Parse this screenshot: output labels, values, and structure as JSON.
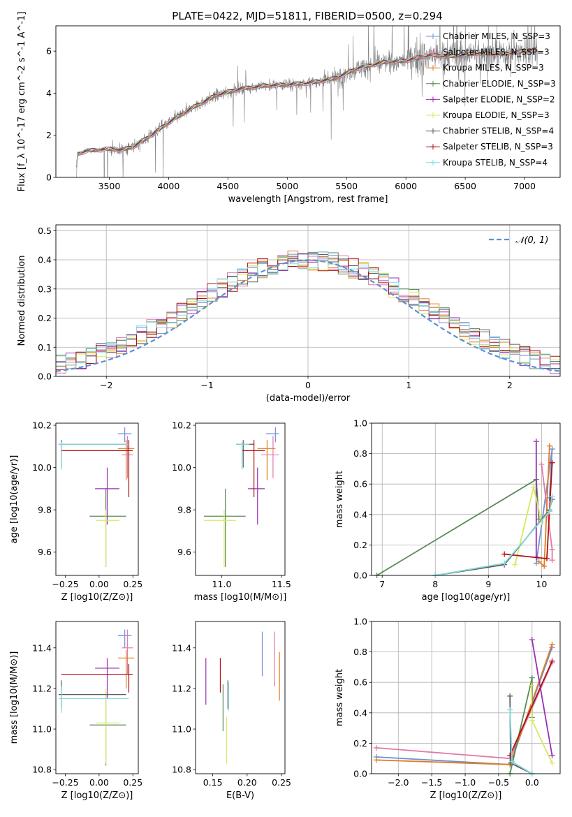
{
  "figure": {
    "title": "PLATE=0422, MJD=51811, FIBERID=0500, z=0.294"
  },
  "colors": {
    "chabrier_miles": "#6f8fd8",
    "salpeter_miles": "#e17aa8",
    "kroupa_miles": "#e07d1f",
    "chabrier_elodie": "#5a8a5a",
    "salpeter_elodie": "#9a2fb4",
    "kroupa_elodie": "#d7e860",
    "chabrier_stelib": "#5e5e5e",
    "salpeter_stelib": "#b01010",
    "kroupa_stelib": "#84dbe0",
    "data": "#808080",
    "normal": "#5b8fd8"
  },
  "chart_data": [
    {
      "id": "spectrum",
      "type": "line",
      "title": "PLATE=0422, MJD=51811, FIBERID=0500, z=0.294",
      "xlabel": "wavelength [Angstrom, rest frame]",
      "ylabel": "Flux [f_λ 10^-17 erg cm^-2 s^-1 A^-1]",
      "xlim": [
        3050,
        7300
      ],
      "ylim": [
        0,
        7.2
      ],
      "xticks": [
        3500,
        4000,
        4500,
        5000,
        5500,
        6000,
        6500,
        7000
      ],
      "yticks": [
        0,
        2,
        4,
        6
      ],
      "continuum_knots": [
        [
          3220,
          0.0
        ],
        [
          3230,
          1.1
        ],
        [
          3300,
          1.25
        ],
        [
          3500,
          1.35
        ],
        [
          3600,
          1.3
        ],
        [
          3700,
          1.45
        ],
        [
          3800,
          1.8
        ],
        [
          3900,
          2.2
        ],
        [
          4000,
          2.6
        ],
        [
          4200,
          3.3
        ],
        [
          4400,
          3.9
        ],
        [
          4600,
          4.2
        ],
        [
          4800,
          4.35
        ],
        [
          5000,
          4.4
        ],
        [
          5200,
          4.5
        ],
        [
          5400,
          4.7
        ],
        [
          5600,
          5.2
        ],
        [
          5800,
          5.45
        ],
        [
          6000,
          5.55
        ],
        [
          6200,
          5.8
        ],
        [
          6400,
          5.75
        ],
        [
          6600,
          5.9
        ],
        [
          6800,
          5.85
        ],
        [
          7000,
          6.0
        ],
        [
          7100,
          6.1
        ]
      ],
      "legend_position": "top-right",
      "series": [
        {
          "name": "Chabrier MILES, N_SSP=3",
          "color_key": "chabrier_miles",
          "marker": "+"
        },
        {
          "name": "Salpeter MILES, N_SSP=3",
          "color_key": "salpeter_miles",
          "marker": "+"
        },
        {
          "name": "Kroupa MILES, N_SSP=3",
          "color_key": "kroupa_miles",
          "marker": "+"
        },
        {
          "name": "Chabrier ELODIE, N_SSP=3",
          "color_key": "chabrier_elodie",
          "marker": "+"
        },
        {
          "name": "Salpeter ELODIE, N_SSP=2",
          "color_key": "salpeter_elodie",
          "marker": "+"
        },
        {
          "name": "Kroupa ELODIE, N_SSP=3",
          "color_key": "kroupa_elodie",
          "marker": "+"
        },
        {
          "name": "Chabrier STELIB, N_SSP=4",
          "color_key": "chabrier_stelib",
          "marker": "+"
        },
        {
          "name": "Salpeter STELIB, N_SSP=3",
          "color_key": "salpeter_stelib",
          "marker": "+"
        },
        {
          "name": "Kroupa STELIB, N_SSP=4",
          "color_key": "kroupa_stelib",
          "marker": "+"
        }
      ]
    },
    {
      "id": "residuals",
      "type": "line",
      "xlabel": "(data-model)/error",
      "ylabel": "Normed distribution",
      "xlim": [
        -2.5,
        2.5
      ],
      "ylim": [
        0,
        0.52
      ],
      "xticks": [
        -2,
        -1,
        0,
        1,
        2
      ],
      "yticks": [
        0.0,
        0.1,
        0.2,
        0.3,
        0.4,
        0.5
      ],
      "grid": true,
      "legend": "𝒩(0, 1)",
      "legend_position": "top-right",
      "bin_width": 0.1
    },
    {
      "id": "age_vs_z",
      "type": "scatter",
      "xlabel": "Z [log10(Z/Z⊙)]",
      "ylabel": "age [log10(age/yr)]",
      "xlim": [
        -0.32,
        0.29
      ],
      "ylim": [
        9.49,
        10.21
      ],
      "xticks": [
        -0.25,
        0.0,
        0.25
      ],
      "yticks": [
        9.6,
        9.8,
        10.0,
        10.2
      ],
      "points": [
        {
          "color_key": "chabrier_miles",
          "x": 0.19,
          "xlo": 0.14,
          "xhi": 0.24,
          "y": 10.16,
          "ylo": 10.12,
          "yhi": 10.19
        },
        {
          "color_key": "salpeter_miles",
          "x": 0.21,
          "xlo": 0.17,
          "xhi": 0.25,
          "y": 10.06,
          "ylo": 9.95,
          "yhi": 10.15
        },
        {
          "color_key": "kroupa_miles",
          "x": 0.2,
          "xlo": 0.14,
          "xhi": 0.26,
          "y": 10.09,
          "ylo": 9.94,
          "yhi": 10.13
        },
        {
          "color_key": "chabrier_elodie",
          "x": 0.05,
          "xlo": -0.07,
          "xhi": 0.2,
          "y": 9.77,
          "ylo": 9.53,
          "yhi": 9.9
        },
        {
          "color_key": "salpeter_elodie",
          "x": 0.06,
          "xlo": -0.03,
          "xhi": 0.15,
          "y": 9.9,
          "ylo": 9.73,
          "yhi": 10.0
        },
        {
          "color_key": "kroupa_elodie",
          "x": 0.05,
          "xlo": -0.02,
          "xhi": 0.15,
          "y": 9.75,
          "ylo": 9.53,
          "yhi": 9.8
        },
        {
          "color_key": "chabrier_stelib",
          "x": -0.28,
          "xlo": -0.3,
          "xhi": 0.2,
          "y": 10.11,
          "ylo": 10.0,
          "yhi": 10.13
        },
        {
          "color_key": "salpeter_stelib",
          "x": 0.22,
          "xlo": -0.28,
          "xhi": 0.25,
          "y": 10.08,
          "ylo": 9.86,
          "yhi": 10.13
        },
        {
          "color_key": "kroupa_stelib",
          "x": -0.28,
          "xlo": -0.3,
          "xhi": 0.22,
          "y": 10.11,
          "ylo": 9.99,
          "yhi": 10.12
        }
      ]
    },
    {
      "id": "age_vs_mass",
      "type": "scatter",
      "xlabel": "mass [log10(M/M⊙)]",
      "ylabel": "",
      "xlim": [
        10.78,
        11.53
      ],
      "ylim": [
        9.49,
        10.21
      ],
      "xticks": [
        11.0,
        11.5
      ],
      "yticks": [
        9.6,
        9.8,
        10.0,
        10.2
      ],
      "points": [
        {
          "color_key": "chabrier_miles",
          "x": 11.45,
          "xlo": 11.37,
          "xhi": 11.48,
          "y": 10.16,
          "ylo": 10.12,
          "yhi": 10.19
        },
        {
          "color_key": "salpeter_miles",
          "x": 11.43,
          "xlo": 11.33,
          "xhi": 11.48,
          "y": 10.06,
          "ylo": 9.95,
          "yhi": 10.15
        },
        {
          "color_key": "kroupa_miles",
          "x": 11.38,
          "xlo": 11.3,
          "xhi": 11.45,
          "y": 10.09,
          "ylo": 9.94,
          "yhi": 10.13
        },
        {
          "color_key": "chabrier_elodie",
          "x": 11.03,
          "xlo": 10.85,
          "xhi": 11.2,
          "y": 9.77,
          "ylo": 9.53,
          "yhi": 9.9
        },
        {
          "color_key": "salpeter_elodie",
          "x": 11.3,
          "xlo": 11.22,
          "xhi": 11.36,
          "y": 9.9,
          "ylo": 9.73,
          "yhi": 10.0
        },
        {
          "color_key": "kroupa_elodie",
          "x": 11.02,
          "xlo": 10.85,
          "xhi": 11.12,
          "y": 9.75,
          "ylo": 9.53,
          "yhi": 9.8
        },
        {
          "color_key": "chabrier_stelib",
          "x": 11.18,
          "xlo": 11.12,
          "xhi": 11.27,
          "y": 10.11,
          "ylo": 10.0,
          "yhi": 10.13
        },
        {
          "color_key": "salpeter_stelib",
          "x": 11.27,
          "xlo": 11.17,
          "xhi": 11.36,
          "y": 10.08,
          "ylo": 9.86,
          "yhi": 10.13
        },
        {
          "color_key": "kroupa_stelib",
          "x": 11.17,
          "xlo": 11.12,
          "xhi": 11.23,
          "y": 10.11,
          "ylo": 9.99,
          "yhi": 10.12
        }
      ]
    },
    {
      "id": "weight_vs_age",
      "type": "line",
      "xlabel": "age [log10(age/yr)]",
      "ylabel": "mass weight",
      "xlim": [
        6.8,
        10.35
      ],
      "ylim": [
        0,
        1
      ],
      "xticks": [
        7,
        8,
        9,
        10
      ],
      "yticks": [
        0.0,
        0.2,
        0.4,
        0.6,
        0.8,
        1.0
      ],
      "grid": true,
      "series": [
        {
          "color_key": "chabrier_miles",
          "points": [
            [
              10.15,
              0.51
            ],
            [
              10.2,
              0.83
            ],
            [
              9.9,
              0.08
            ]
          ]
        },
        {
          "color_key": "salpeter_miles",
          "points": [
            [
              10.0,
              0.73
            ],
            [
              10.2,
              0.17
            ],
            [
              10.2,
              0.1
            ]
          ]
        },
        {
          "color_key": "kroupa_miles",
          "points": [
            [
              10.15,
              0.85
            ],
            [
              10.05,
              0.06
            ],
            [
              9.95,
              0.09
            ]
          ]
        },
        {
          "color_key": "chabrier_elodie",
          "points": [
            [
              6.9,
              0.0
            ],
            [
              9.9,
              0.63
            ],
            [
              9.95,
              0.37
            ]
          ]
        },
        {
          "color_key": "salpeter_elodie",
          "points": [
            [
              9.9,
              0.88
            ],
            [
              9.9,
              0.12
            ]
          ]
        },
        {
          "color_key": "kroupa_elodie",
          "points": [
            [
              9.5,
              0.07
            ],
            [
              9.85,
              0.58
            ],
            [
              10.0,
              0.35
            ]
          ]
        },
        {
          "color_key": "chabrier_stelib",
          "points": [
            [
              8.0,
              0.0
            ],
            [
              9.3,
              0.07
            ],
            [
              10.15,
              0.43
            ],
            [
              10.2,
              0.5
            ]
          ]
        },
        {
          "color_key": "salpeter_stelib",
          "points": [
            [
              9.3,
              0.14
            ],
            [
              10.1,
              0.11
            ],
            [
              10.2,
              0.74
            ]
          ]
        },
        {
          "color_key": "kroupa_stelib",
          "points": [
            [
              8.0,
              0.0
            ],
            [
              9.3,
              0.08
            ],
            [
              10.15,
              0.42
            ],
            [
              10.2,
              0.52
            ]
          ]
        }
      ]
    },
    {
      "id": "mass_vs_z",
      "type": "scatter",
      "xlabel": "Z [log10(Z/Z⊙)]",
      "ylabel": "mass [log10(M/M⊙)]",
      "xlim": [
        -0.32,
        0.29
      ],
      "ylim": [
        10.78,
        11.53
      ],
      "xticks": [
        -0.25,
        0.0,
        0.25
      ],
      "yticks": [
        10.8,
        11.0,
        11.2,
        11.4
      ],
      "points": [
        {
          "color_key": "chabrier_miles",
          "x": 0.19,
          "xlo": 0.14,
          "xhi": 0.24,
          "y": 11.46,
          "ylo": 11.4,
          "yhi": 11.49
        },
        {
          "color_key": "salpeter_miles",
          "x": 0.21,
          "xlo": 0.17,
          "xhi": 0.25,
          "y": 11.4,
          "ylo": 11.27,
          "yhi": 11.49
        },
        {
          "color_key": "kroupa_miles",
          "x": 0.2,
          "xlo": 0.14,
          "xhi": 0.26,
          "y": 11.35,
          "ylo": 11.2,
          "yhi": 11.39
        },
        {
          "color_key": "chabrier_elodie",
          "x": 0.05,
          "xlo": -0.07,
          "xhi": 0.2,
          "y": 11.02,
          "ylo": 10.82,
          "yhi": 11.18
        },
        {
          "color_key": "salpeter_elodie",
          "x": 0.06,
          "xlo": -0.03,
          "xhi": 0.15,
          "y": 11.3,
          "ylo": 11.15,
          "yhi": 11.35
        },
        {
          "color_key": "kroupa_elodie",
          "x": 0.05,
          "xlo": -0.02,
          "xhi": 0.15,
          "y": 11.03,
          "ylo": 10.83,
          "yhi": 11.2
        },
        {
          "color_key": "chabrier_stelib",
          "x": -0.28,
          "xlo": -0.3,
          "xhi": 0.2,
          "y": 11.17,
          "ylo": 11.1,
          "yhi": 11.24
        },
        {
          "color_key": "salpeter_stelib",
          "x": 0.22,
          "xlo": -0.28,
          "xhi": 0.25,
          "y": 11.27,
          "ylo": 11.18,
          "yhi": 11.32
        },
        {
          "color_key": "kroupa_stelib",
          "x": -0.28,
          "xlo": -0.3,
          "xhi": 0.22,
          "y": 11.15,
          "ylo": 11.08,
          "yhi": 11.21
        }
      ]
    },
    {
      "id": "mass_vs_ebv",
      "type": "scatter",
      "xlabel": "E(B-V)",
      "ylabel": "",
      "xlim": [
        0.125,
        0.255
      ],
      "ylim": [
        10.78,
        11.53
      ],
      "xticks": [
        0.15,
        0.2,
        0.25
      ],
      "yticks": [
        10.8,
        11.0,
        11.2,
        11.4
      ],
      "points": [
        {
          "color_key": "chabrier_miles",
          "x": 0.222,
          "ylo": 11.26,
          "yhi": 11.48
        },
        {
          "color_key": "salpeter_miles",
          "x": 0.24,
          "ylo": 11.21,
          "yhi": 11.48
        },
        {
          "color_key": "kroupa_miles",
          "x": 0.247,
          "ylo": 11.14,
          "yhi": 11.38
        },
        {
          "color_key": "chabrier_elodie",
          "x": 0.165,
          "ylo": 10.99,
          "yhi": 11.22
        },
        {
          "color_key": "salpeter_elodie",
          "x": 0.14,
          "ylo": 11.12,
          "yhi": 11.35
        },
        {
          "color_key": "kroupa_elodie",
          "x": 0.17,
          "ylo": 10.83,
          "yhi": 11.06
        },
        {
          "color_key": "chabrier_stelib",
          "x": 0.172,
          "ylo": 11.1,
          "yhi": 11.24
        },
        {
          "color_key": "salpeter_stelib",
          "x": 0.161,
          "ylo": 11.18,
          "yhi": 11.35
        },
        {
          "color_key": "kroupa_stelib",
          "x": 0.173,
          "ylo": 11.09,
          "yhi": 11.23
        }
      ]
    },
    {
      "id": "weight_vs_z",
      "type": "line",
      "xlabel": "Z [log10(Z/Z⊙)]",
      "ylabel": "mass weight",
      "xlim": [
        -2.4,
        0.42
      ],
      "ylim": [
        0,
        1
      ],
      "xticks": [
        -2.0,
        -1.5,
        -1.0,
        -0.5,
        0.0
      ],
      "yticks": [
        0.0,
        0.2,
        0.4,
        0.6,
        0.8,
        1.0
      ],
      "grid": true,
      "series": [
        {
          "color_key": "chabrier_miles",
          "points": [
            [
              -2.33,
              0.11
            ],
            [
              -0.33,
              0.06
            ],
            [
              0.3,
              0.83
            ]
          ]
        },
        {
          "color_key": "salpeter_miles",
          "points": [
            [
              -2.33,
              0.17
            ],
            [
              -0.33,
              0.1
            ],
            [
              0.3,
              0.73
            ]
          ]
        },
        {
          "color_key": "kroupa_miles",
          "points": [
            [
              -2.33,
              0.09
            ],
            [
              -0.33,
              0.06
            ],
            [
              0.3,
              0.85
            ]
          ]
        },
        {
          "color_key": "chabrier_elodie",
          "points": [
            [
              -0.33,
              0.0
            ],
            [
              0.0,
              0.63
            ],
            [
              0.0,
              0.37
            ]
          ]
        },
        {
          "color_key": "salpeter_elodie",
          "points": [
            [
              0.0,
              0.88
            ],
            [
              0.3,
              0.12
            ]
          ]
        },
        {
          "color_key": "kroupa_elodie",
          "points": [
            [
              -0.01,
              0.58
            ],
            [
              0.0,
              0.35
            ],
            [
              0.3,
              0.07
            ]
          ]
        },
        {
          "color_key": "chabrier_stelib",
          "points": [
            [
              -0.33,
              0.51
            ],
            [
              -0.32,
              0.07
            ],
            [
              0.0,
              0.0
            ]
          ]
        },
        {
          "color_key": "salpeter_stelib",
          "points": [
            [
              -0.33,
              0.12
            ],
            [
              0.3,
              0.74
            ]
          ]
        },
        {
          "color_key": "kroupa_stelib",
          "points": [
            [
              -0.33,
              0.42
            ],
            [
              -0.3,
              0.08
            ],
            [
              0.0,
              0.0
            ]
          ]
        }
      ]
    }
  ]
}
